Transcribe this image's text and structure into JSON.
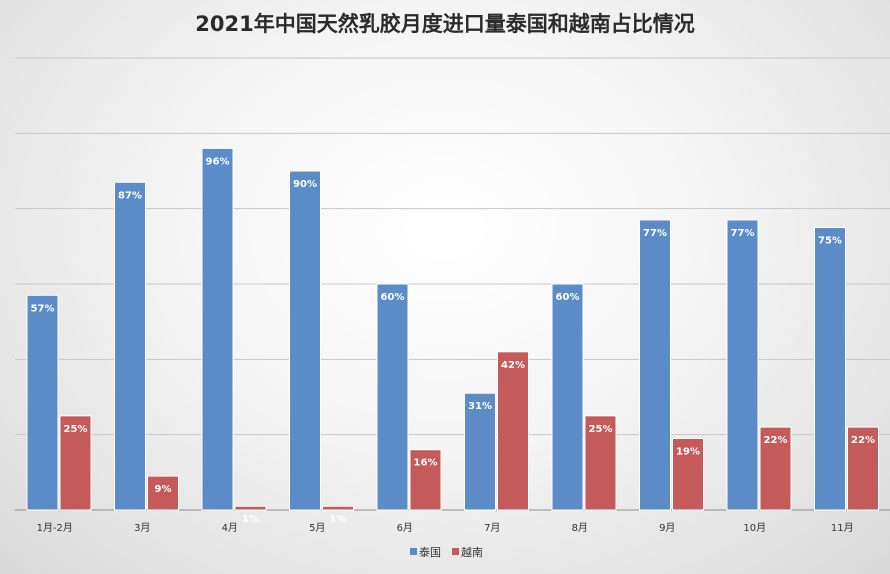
{
  "chart_data": {
    "type": "bar",
    "title": "2021年中国天然乳胶月度进口量泰国和越南占比情况",
    "categories": [
      "1月-2月",
      "3月",
      "4月",
      "5月",
      "6月",
      "7月",
      "8月",
      "9月",
      "10月",
      "11月"
    ],
    "series": [
      {
        "name": "泰国",
        "color": "#5b8cc7",
        "values": [
          57,
          87,
          96,
          90,
          60,
          31,
          60,
          77,
          77,
          75
        ]
      },
      {
        "name": "越南",
        "color": "#c55a5a",
        "values": [
          25,
          9,
          1,
          1,
          16,
          42,
          25,
          19,
          22,
          22
        ]
      }
    ],
    "value_suffix": "%",
    "ylim": [
      0,
      120
    ],
    "grid": true,
    "legend": "bottom"
  }
}
